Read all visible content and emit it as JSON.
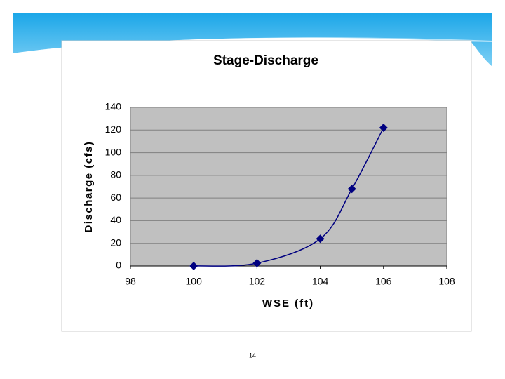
{
  "chart_data": {
    "type": "scatter",
    "title": "Stage-Discharge",
    "x_label": "WSE (ft)",
    "y_label": "Discharge (cfs)",
    "x": [
      100,
      102,
      104,
      105,
      106
    ],
    "series": [
      {
        "name": "Discharge",
        "color": "#000080",
        "values": [
          0,
          2.5,
          24,
          68,
          122
        ]
      }
    ],
    "xlim": [
      98,
      108
    ],
    "xticks": [
      98,
      100,
      102,
      104,
      106,
      108
    ],
    "ylim": [
      0,
      140
    ],
    "yticks": [
      0,
      20,
      40,
      60,
      80,
      100,
      120,
      140
    ],
    "grid": true,
    "smooth": true,
    "plot_background": "#c0c0c0"
  },
  "slide": {
    "page_number": "14"
  }
}
